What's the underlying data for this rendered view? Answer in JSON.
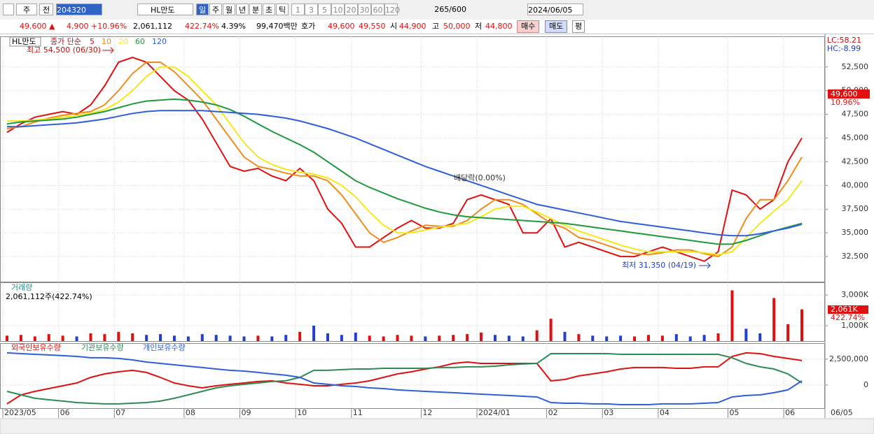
{
  "toolbar": {
    "period": "주",
    "prev": "전",
    "code": "204320",
    "name": "HL만도",
    "units": [
      "일",
      "주",
      "월",
      "년",
      "분",
      "초",
      "틱"
    ],
    "counts": [
      "1",
      "3",
      "5",
      "10",
      "20",
      "30",
      "60",
      "120"
    ],
    "view": "265",
    "view_total": "/600",
    "date": "2024/06/05"
  },
  "info_bar": {
    "price": "49,600 ▲",
    "change": "4,900 +10.96%",
    "volume": "2,061,112",
    "volume_ratio": "422.74%",
    "turnover": "4.39%",
    "amount": "99,470백만",
    "quote_label": "호가",
    "ask": "49,600",
    "bid": "49,550",
    "open_label": "시",
    "open": "44,900",
    "high_label": "고",
    "high": "50,000",
    "low_label": "저",
    "low": "44,800",
    "buy": "매수",
    "sell": "매도",
    "avg": "평"
  },
  "chart_data": [
    {
      "type": "line",
      "title": "HL만도",
      "legend_label": "종가 단순",
      "categories": [
        "2023/05",
        null,
        null,
        null,
        "06",
        null,
        null,
        null,
        "07",
        null,
        null,
        null,
        null,
        "08",
        null,
        null,
        null,
        "09",
        null,
        null,
        null,
        "10",
        null,
        null,
        null,
        "11",
        null,
        null,
        null,
        null,
        "12",
        null,
        null,
        null,
        "2024/01",
        null,
        null,
        null,
        null,
        "02",
        null,
        null,
        null,
        "03",
        null,
        null,
        null,
        "04",
        null,
        null,
        null,
        null,
        "05",
        null,
        null,
        null,
        "06",
        null
      ],
      "ylim": [
        29850,
        55730
      ],
      "yticks": [
        {
          "value": 32500,
          "label": "32,500"
        },
        {
          "value": 35000,
          "label": "35,000"
        },
        {
          "value": 37500,
          "label": "37,500"
        },
        {
          "value": 40000,
          "label": "40,000"
        },
        {
          "value": 42500,
          "label": "42,500"
        },
        {
          "value": 45000,
          "label": "45,000"
        },
        {
          "value": 47500,
          "label": "47,500"
        },
        {
          "value": 50000,
          "label": "50,000"
        },
        {
          "value": 52500,
          "label": "52,500"
        }
      ],
      "grid": true,
      "series": [
        {
          "name": "5",
          "color": "#e01010",
          "values": [
            45600,
            46500,
            47200,
            47500,
            47800,
            47500,
            48500,
            50500,
            53000,
            53500,
            53000,
            51500,
            50000,
            49000,
            47000,
            44500,
            42000,
            41500,
            41800,
            41000,
            40500,
            41800,
            40500,
            37500,
            36000,
            33500,
            33500,
            34500,
            35500,
            36300,
            35500,
            35500,
            36000,
            38500,
            39000,
            38500,
            38000,
            35000,
            35000,
            36500,
            33500,
            34000,
            33500,
            33000,
            32500,
            32500,
            33000,
            33500,
            33000,
            32500,
            32000,
            33000,
            39500,
            39000,
            37500,
            38500,
            42500,
            45000
          ]
        },
        {
          "name": "10",
          "color": "#f08c1c",
          "values": [
            46000,
            46200,
            46700,
            47100,
            47400,
            47600,
            47800,
            48500,
            50000,
            51800,
            53000,
            53000,
            52000,
            50500,
            49000,
            47000,
            45000,
            43000,
            42000,
            41700,
            41300,
            41000,
            41000,
            40500,
            39000,
            37000,
            35000,
            34000,
            34500,
            35200,
            35800,
            35700,
            35700,
            36300,
            37500,
            38500,
            38500,
            38000,
            37000,
            36000,
            35500,
            34500,
            34200,
            33700,
            33200,
            32800,
            32700,
            32900,
            33200,
            33200,
            32800,
            32500,
            33500,
            36500,
            38500,
            38500,
            40500,
            43000
          ]
        },
        {
          "name": "20",
          "color": "#f5e81a",
          "values": [
            46800,
            46800,
            46900,
            47000,
            47200,
            47400,
            47600,
            48000,
            48800,
            50000,
            51500,
            52500,
            52500,
            51500,
            50000,
            48500,
            46500,
            44500,
            43000,
            42200,
            41700,
            41400,
            41200,
            40800,
            40000,
            38800,
            37200,
            35800,
            35000,
            35000,
            35300,
            35600,
            35800,
            36000,
            36700,
            37500,
            37800,
            37800,
            37200,
            36500,
            35800,
            35200,
            34700,
            34200,
            33700,
            33300,
            33000,
            33000,
            33000,
            33000,
            32900,
            32700,
            33000,
            34500,
            36000,
            37300,
            38500,
            40500
          ]
        },
        {
          "name": "60",
          "color": "#1f9a3a",
          "values": [
            46500,
            46700,
            46800,
            46900,
            47000,
            47200,
            47500,
            47800,
            48200,
            48600,
            48900,
            49000,
            49100,
            49000,
            48800,
            48500,
            48000,
            47300,
            46500,
            45700,
            45000,
            44300,
            43500,
            42500,
            41500,
            40500,
            39800,
            39200,
            38600,
            38100,
            37600,
            37200,
            36900,
            36700,
            36600,
            36500,
            36400,
            36300,
            36200,
            36100,
            36000,
            35800,
            35600,
            35400,
            35200,
            35000,
            34800,
            34600,
            34400,
            34200,
            34000,
            33800,
            33800,
            34200,
            34700,
            35200,
            35600,
            36000
          ]
        },
        {
          "name": "120",
          "color": "#2e5fd8",
          "values": [
            46200,
            46200,
            46300,
            46400,
            46500,
            46600,
            46800,
            47000,
            47300,
            47600,
            47800,
            47900,
            47900,
            47900,
            47900,
            47800,
            47700,
            47600,
            47500,
            47300,
            47100,
            46800,
            46400,
            46000,
            45500,
            45000,
            44400,
            43800,
            43200,
            42600,
            42000,
            41500,
            41000,
            40500,
            40000,
            39500,
            39000,
            38500,
            38000,
            37700,
            37400,
            37100,
            36800,
            36500,
            36200,
            36000,
            35800,
            35600,
            35400,
            35200,
            35000,
            34800,
            34700,
            34700,
            34900,
            35200,
            35500,
            35900
          ]
        }
      ],
      "annotations": [
        "최고 54,500 (06/30)",
        "배당락(0.00%)",
        "최저 31,350 (04/19)"
      ],
      "right_labels": [
        "LC:58.21",
        "HC:-8.99"
      ],
      "last_labels": [
        "49,600",
        "10.96%"
      ]
    },
    {
      "type": "bar",
      "title": "거래량",
      "subtitle": "2,061,112주(422.74%)",
      "values": [
        350000,
        400000,
        300000,
        450000,
        350000,
        300000,
        500000,
        450000,
        600000,
        500000,
        400000,
        450000,
        350000,
        300000,
        450000,
        400000,
        350000,
        300000,
        350000,
        300000,
        400000,
        600000,
        1000000,
        500000,
        400000,
        550000,
        350000,
        300000,
        400000,
        350000,
        300000,
        350000,
        400000,
        450000,
        550000,
        400000,
        350000,
        300000,
        700000,
        1450000,
        600000,
        450000,
        350000,
        300000,
        350000,
        300000,
        400000,
        350000,
        450000,
        300000,
        400000,
        500000,
        3300000,
        800000,
        500000,
        2800000,
        1100000,
        2061112
      ],
      "up_color": "#e01010",
      "down_color": "#2040d0",
      "ylim": [
        0,
        3820000
      ],
      "yticks": [
        {
          "value": 1000000,
          "label": "1,000K"
        },
        {
          "value": 3000000,
          "label": "3,000K"
        }
      ],
      "grid": true,
      "last_labels": [
        "2,061K",
        "422.74%"
      ]
    },
    {
      "type": "line",
      "ylim": [
        -2230000,
        4050000
      ],
      "yticks": [
        0,
        {
          "value": 2500000,
          "label": "2,500,000"
        }
      ],
      "grid": true,
      "series": [
        {
          "name": "외국인보유수량",
          "color": "#e01010",
          "values": [
            -1820000,
            -950000,
            -610000,
            -340000,
            -70000,
            200000,
            740000,
            1080000,
            1280000,
            1420000,
            1220000,
            740000,
            200000,
            -70000,
            -270000,
            -70000,
            70000,
            200000,
            340000,
            410000,
            200000,
            70000,
            -70000,
            -70000,
            70000,
            200000,
            410000,
            740000,
            1080000,
            1280000,
            1550000,
            1760000,
            2090000,
            2230000,
            2090000,
            2090000,
            2090000,
            2090000,
            2090000,
            410000,
            540000,
            880000,
            1080000,
            1280000,
            1550000,
            1690000,
            1690000,
            1690000,
            1620000,
            1620000,
            1760000,
            1760000,
            2770000,
            3110000,
            3040000,
            2770000,
            2570000,
            2370000
          ]
        },
        {
          "name": "기관보유수량",
          "color": "#2e8b57",
          "values": [
            -610000,
            -950000,
            -1280000,
            -1420000,
            -1550000,
            -1690000,
            -1760000,
            -1820000,
            -1820000,
            -1760000,
            -1690000,
            -1550000,
            -1280000,
            -950000,
            -610000,
            -270000,
            -70000,
            70000,
            200000,
            340000,
            410000,
            740000,
            1420000,
            1420000,
            1490000,
            1550000,
            1550000,
            1620000,
            1620000,
            1620000,
            1620000,
            1690000,
            1690000,
            1760000,
            1760000,
            1820000,
            1960000,
            2030000,
            2090000,
            3040000,
            3040000,
            3040000,
            3040000,
            3040000,
            2970000,
            2970000,
            2970000,
            2970000,
            2970000,
            2970000,
            2970000,
            2970000,
            2640000,
            2090000,
            1760000,
            1550000,
            1080000,
            200000
          ]
        },
        {
          "name": "개인보유수량",
          "color": "#2e5fd8",
          "values": [
            3110000,
            3040000,
            2970000,
            2910000,
            2840000,
            2770000,
            2640000,
            2640000,
            2570000,
            2430000,
            2230000,
            2090000,
            1960000,
            1820000,
            1690000,
            1550000,
            1420000,
            1350000,
            1220000,
            1080000,
            950000,
            740000,
            200000,
            70000,
            -70000,
            -140000,
            -270000,
            -340000,
            -470000,
            -540000,
            -610000,
            -680000,
            -740000,
            -810000,
            -880000,
            -950000,
            -1010000,
            -1080000,
            -1150000,
            -1690000,
            -1760000,
            -1760000,
            -1820000,
            -1820000,
            -1890000,
            -1890000,
            -1890000,
            -1820000,
            -1820000,
            -1820000,
            -1760000,
            -1690000,
            -1150000,
            -1010000,
            -950000,
            -740000,
            -470000,
            410000
          ]
        }
      ]
    }
  ],
  "x_axis_end": "06/05"
}
